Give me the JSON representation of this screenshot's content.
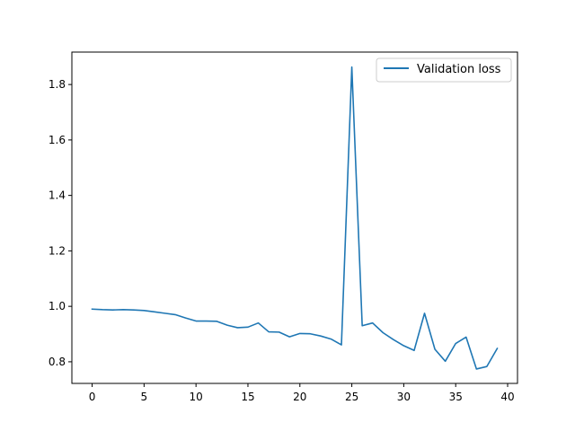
{
  "chart_data": {
    "type": "line",
    "title": "",
    "xlabel": "",
    "ylabel": "",
    "xlim": [
      -1.95,
      40.95
    ],
    "ylim": [
      0.722,
      1.917
    ],
    "xticks": [
      0,
      5,
      10,
      15,
      20,
      25,
      30,
      35,
      40
    ],
    "yticks": [
      0.8,
      1.0,
      1.2,
      1.4,
      1.6,
      1.8
    ],
    "xtick_labels": [
      "0",
      "5",
      "10",
      "15",
      "20",
      "25",
      "30",
      "35",
      "40"
    ],
    "ytick_labels": [
      "0.8",
      "1.0",
      "1.2",
      "1.4",
      "1.6",
      "1.8"
    ],
    "grid": false,
    "legend_position": "top-right",
    "series": [
      {
        "name": "Validation loss",
        "color": "#1f77b4",
        "x": [
          0,
          1,
          2,
          3,
          4,
          5,
          6,
          7,
          8,
          9,
          10,
          11,
          12,
          13,
          14,
          15,
          16,
          17,
          18,
          19,
          20,
          21,
          22,
          23,
          24,
          25,
          26,
          27,
          28,
          29,
          30,
          31,
          32,
          33,
          34,
          35,
          36,
          37,
          38,
          39
        ],
        "y": [
          0.99,
          0.988,
          0.987,
          0.988,
          0.987,
          0.985,
          0.98,
          0.975,
          0.97,
          0.958,
          0.947,
          0.947,
          0.946,
          0.932,
          0.923,
          0.925,
          0.94,
          0.908,
          0.907,
          0.89,
          0.902,
          0.901,
          0.893,
          0.882,
          0.861,
          1.863,
          0.93,
          0.94,
          0.905,
          0.88,
          0.858,
          0.841,
          0.975,
          0.845,
          0.802,
          0.866,
          0.889,
          0.774,
          0.783,
          0.848
        ]
      }
    ]
  }
}
